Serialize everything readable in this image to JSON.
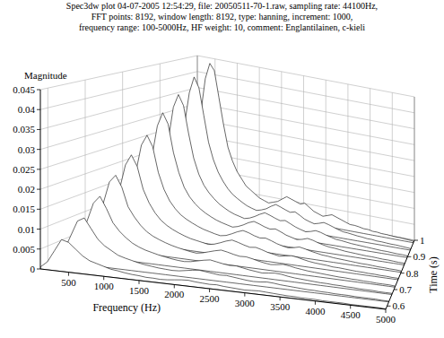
{
  "chart_data": {
    "type": "waterfall",
    "title": [
      "Spec3dw plot 04-07-2005 12:54:29, file: 20050511-70-1.raw, sampling rate: 44100Hz,",
      "FFT points: 8192, window length: 8192, type: hanning, increment: 1000,",
      "frequency range: 100-5000Hz, HF weight: 10, comment: Englantilainen, c-kieli"
    ],
    "xlabel": "Frequency (Hz)",
    "ylabel": "Time (s)",
    "zlabel": "Magnitude",
    "xlim": [
      100,
      5000
    ],
    "xticks": [
      500,
      1000,
      1500,
      2000,
      2500,
      3000,
      3500,
      4000,
      4500,
      5000
    ],
    "ylim": [
      0.58,
      1
    ],
    "yticks": [
      0.6,
      0.7,
      0.8,
      0.9,
      1
    ],
    "zlim": [
      0,
      0.045
    ],
    "zticks": [
      0,
      0.005,
      0.01,
      0.015,
      0.02,
      0.025,
      0.03,
      0.035,
      0.04,
      0.045
    ],
    "grid": true,
    "color": "#000000",
    "x": [
      100,
      200,
      300,
      400,
      500,
      600,
      700,
      800,
      900,
      1000,
      1100,
      1200,
      1300,
      1400,
      1500,
      1600,
      1700,
      1800,
      1900,
      2000,
      2100,
      2200,
      2300,
      2400,
      2500,
      2600,
      2700,
      2800,
      2900,
      3000,
      3100,
      3200,
      3300,
      3400,
      3500,
      3600,
      3700,
      3800,
      3900,
      4000,
      4100,
      4200,
      4300,
      4400,
      4500,
      4600,
      4700,
      4800,
      4900,
      5000
    ],
    "y": [
      0.58,
      0.625,
      0.67,
      0.715,
      0.76,
      0.805,
      0.85,
      0.895,
      0.94,
      0.985
    ],
    "values": [
      [
        0.0005,
        0.002,
        0.005,
        0.008,
        0.0075,
        0.006,
        0.0045,
        0.0035,
        0.003,
        0.0025,
        0.002,
        0.0018,
        0.0015,
        0.0013,
        0.0012,
        0.001,
        0.001,
        0.0009,
        0.001,
        0.0012,
        0.0014,
        0.0015,
        0.0013,
        0.0012,
        0.0011,
        0.0012,
        0.001,
        0.0009,
        0.0008,
        0.0007,
        0.0008,
        0.0009,
        0.0008,
        0.0007,
        0.0006,
        0.0005,
        0.0005,
        0.0004,
        0.0004,
        0.0004,
        0.0003,
        0.0003,
        0.0003,
        0.0003,
        0.0002,
        0.0002,
        0.0002,
        0.0002,
        0.0002,
        0.0001
      ],
      [
        0.0008,
        0.003,
        0.007,
        0.011,
        0.012,
        0.0095,
        0.007,
        0.0055,
        0.0045,
        0.0035,
        0.003,
        0.0026,
        0.0022,
        0.0019,
        0.0017,
        0.0015,
        0.0014,
        0.0013,
        0.0014,
        0.0017,
        0.002,
        0.0022,
        0.002,
        0.0018,
        0.0016,
        0.0017,
        0.0015,
        0.0013,
        0.0011,
        0.001,
        0.0011,
        0.0013,
        0.0012,
        0.001,
        0.0009,
        0.0008,
        0.0007,
        0.0006,
        0.0006,
        0.0005,
        0.0005,
        0.0004,
        0.0004,
        0.0004,
        0.0003,
        0.0003,
        0.0003,
        0.0003,
        0.0002,
        0.0002
      ],
      [
        0.001,
        0.004,
        0.009,
        0.014,
        0.016,
        0.013,
        0.0095,
        0.0075,
        0.006,
        0.0048,
        0.004,
        0.0034,
        0.003,
        0.0026,
        0.0023,
        0.002,
        0.0018,
        0.0017,
        0.0019,
        0.0023,
        0.0027,
        0.003,
        0.0027,
        0.0024,
        0.0022,
        0.0023,
        0.002,
        0.0017,
        0.0015,
        0.0013,
        0.0015,
        0.0017,
        0.0016,
        0.0013,
        0.0011,
        0.001,
        0.0009,
        0.0008,
        0.0007,
        0.0007,
        0.0006,
        0.0006,
        0.0005,
        0.0005,
        0.0004,
        0.0004,
        0.0004,
        0.0003,
        0.0003,
        0.0003
      ],
      [
        0.0012,
        0.005,
        0.012,
        0.018,
        0.02,
        0.017,
        0.012,
        0.0095,
        0.0075,
        0.006,
        0.005,
        0.0043,
        0.0037,
        0.0032,
        0.0028,
        0.0025,
        0.0022,
        0.002,
        0.0023,
        0.0028,
        0.0033,
        0.0037,
        0.0034,
        0.003,
        0.0027,
        0.0028,
        0.0025,
        0.0021,
        0.0018,
        0.0016,
        0.0018,
        0.0021,
        0.0019,
        0.0016,
        0.0014,
        0.0012,
        0.0011,
        0.001,
        0.0009,
        0.0008,
        0.0007,
        0.0007,
        0.0006,
        0.0006,
        0.0005,
        0.0005,
        0.0004,
        0.0004,
        0.0004,
        0.0003
      ],
      [
        0.0014,
        0.006,
        0.014,
        0.021,
        0.024,
        0.021,
        0.015,
        0.0115,
        0.009,
        0.0072,
        0.006,
        0.0051,
        0.0044,
        0.0038,
        0.0033,
        0.003,
        0.0027,
        0.0024,
        0.0027,
        0.0033,
        0.004,
        0.0045,
        0.0041,
        0.0036,
        0.0032,
        0.0034,
        0.003,
        0.0025,
        0.0022,
        0.0019,
        0.0022,
        0.0025,
        0.0023,
        0.0019,
        0.0016,
        0.0014,
        0.0013,
        0.0012,
        0.001,
        0.001,
        0.0009,
        0.0008,
        0.0007,
        0.0007,
        0.0006,
        0.0006,
        0.0005,
        0.0005,
        0.0004,
        0.0004
      ],
      [
        0.0016,
        0.007,
        0.017,
        0.025,
        0.028,
        0.025,
        0.018,
        0.0135,
        0.0105,
        0.0085,
        0.007,
        0.006,
        0.0052,
        0.0045,
        0.0039,
        0.0035,
        0.0031,
        0.0028,
        0.0031,
        0.0038,
        0.0046,
        0.0052,
        0.0048,
        0.0042,
        0.0038,
        0.004,
        0.0035,
        0.0029,
        0.0025,
        0.0022,
        0.0025,
        0.0029,
        0.0026,
        0.0022,
        0.0019,
        0.0016,
        0.0015,
        0.0013,
        0.0012,
        0.0011,
        0.001,
        0.0009,
        0.0008,
        0.0008,
        0.0007,
        0.0006,
        0.0006,
        0.0005,
        0.0005,
        0.0004
      ],
      [
        0.0018,
        0.008,
        0.02,
        0.029,
        0.033,
        0.03,
        0.022,
        0.0165,
        0.0125,
        0.01,
        0.0083,
        0.007,
        0.006,
        0.0052,
        0.0045,
        0.004,
        0.0036,
        0.0032,
        0.0036,
        0.0043,
        0.0052,
        0.0058,
        0.0053,
        0.0047,
        0.0043,
        0.0046,
        0.004,
        0.0033,
        0.0029,
        0.0025,
        0.0028,
        0.0033,
        0.003,
        0.0025,
        0.0021,
        0.0018,
        0.0017,
        0.0015,
        0.0013,
        0.0012,
        0.0011,
        0.001,
        0.0009,
        0.0009,
        0.0008,
        0.0007,
        0.0007,
        0.0006,
        0.0005,
        0.0005
      ],
      [
        0.0019,
        0.009,
        0.023,
        0.033,
        0.037,
        0.034,
        0.026,
        0.019,
        0.0145,
        0.0115,
        0.0095,
        0.008,
        0.0067,
        0.0058,
        0.005,
        0.0044,
        0.004,
        0.0036,
        0.004,
        0.0047,
        0.0056,
        0.0063,
        0.0058,
        0.0052,
        0.0047,
        0.005,
        0.0043,
        0.0036,
        0.0031,
        0.0027,
        0.003,
        0.0035,
        0.0032,
        0.0027,
        0.0023,
        0.0019,
        0.0018,
        0.0016,
        0.0014,
        0.0013,
        0.0012,
        0.0011,
        0.001,
        0.0009,
        0.0008,
        0.0008,
        0.0007,
        0.0006,
        0.0006,
        0.0005
      ],
      [
        0.002,
        0.011,
        0.026,
        0.036,
        0.041,
        0.038,
        0.03,
        0.022,
        0.017,
        0.0135,
        0.011,
        0.009,
        0.0075,
        0.0065,
        0.0056,
        0.0048,
        0.0043,
        0.0039,
        0.0043,
        0.0049,
        0.0059,
        0.0067,
        0.0062,
        0.0056,
        0.0051,
        0.0055,
        0.0047,
        0.0038,
        0.0033,
        0.0029,
        0.0033,
        0.0038,
        0.0034,
        0.0029,
        0.0024,
        0.002,
        0.0019,
        0.0017,
        0.0015,
        0.0014,
        0.0012,
        0.0012,
        0.001,
        0.001,
        0.0009,
        0.0008,
        0.0008,
        0.0007,
        0.0006,
        0.0005
      ],
      [
        0.002,
        0.012,
        0.028,
        0.039,
        0.044,
        0.042,
        0.034,
        0.026,
        0.019,
        0.015,
        0.012,
        0.01,
        0.008,
        0.007,
        0.006,
        0.005,
        0.0045,
        0.004,
        0.0045,
        0.005,
        0.006,
        0.007,
        0.0065,
        0.006,
        0.0055,
        0.006,
        0.005,
        0.004,
        0.0035,
        0.003,
        0.0035,
        0.004,
        0.0035,
        0.003,
        0.0025,
        0.002,
        0.002,
        0.0018,
        0.0015,
        0.0015,
        0.0012,
        0.0012,
        0.001,
        0.001,
        0.0009,
        0.0008,
        0.0008,
        0.0007,
        0.0006,
        0.0005
      ]
    ]
  }
}
